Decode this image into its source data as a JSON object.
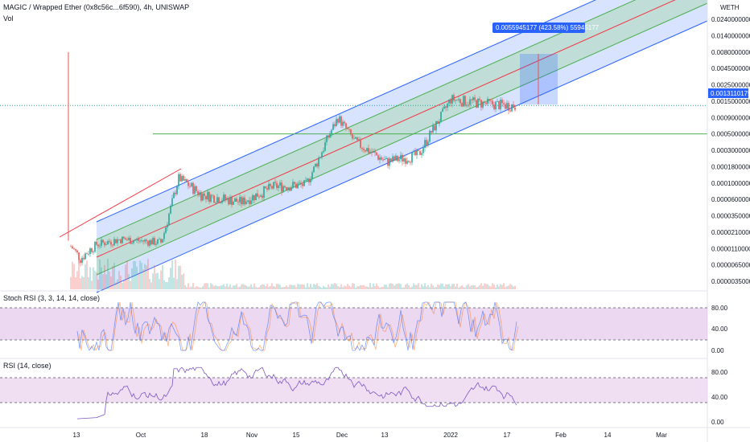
{
  "header": {
    "title": "MAGIC / Wrapped Ether (0x8c56c...6f590), 4h, UNISWAP",
    "vol_label": "Vol"
  },
  "colors": {
    "up": "#26a69a",
    "down": "#ef5350",
    "channel_fill": "#2962ff",
    "channel_line": "#2962ff",
    "inner_fill": "#a5d6a7",
    "median_line": "#f23645",
    "hline": "#4caf50",
    "osc_fill": "#e1bee7",
    "stoch_k": "#2962ff",
    "stoch_d": "#ff6d00",
    "rsi_line": "#7e57c2",
    "measure_fill": "#2962ff",
    "badge": "#2962ff"
  },
  "chart_data": [
    {
      "type": "candlestick",
      "title": "MAGIC / Wrapped Ether (0x8c56c...6f590), 4h, UNISWAP",
      "yscale": "log",
      "currency_label": "WETH",
      "y_ticks": [
        "0.0240000000",
        "0.0140000000",
        "0.0080000000",
        "0.0045000000",
        "0.0025000000",
        "0.0015000000",
        "0.0009000000",
        "0.0005000000",
        "0.0003000000",
        "0.0001800000",
        "0.0001000000",
        "0.0000600000",
        "0.0000350000",
        "0.0000210000",
        "0.0000110000",
        "0.0000065000",
        "0.0000035000"
      ],
      "x_ticks": [
        "13",
        "Oct",
        "18",
        "Nov",
        "15",
        "Dec",
        "13",
        "2022",
        "17",
        "Feb",
        "14",
        "Mar"
      ],
      "last_price": "0.0013110179",
      "measure_label": "0.0055945177 (423.58%) 55945177",
      "horizontal_line": 0.0005,
      "series_description": "Price rises from about 0.0000080 in mid-September to about 0.0013 in mid-January inside an ascending regression channel"
    },
    {
      "type": "line",
      "title": "Stoch RSI (3, 3, 14, 14, close)",
      "y_ticks": [
        "80.00",
        "40.00",
        "0.00"
      ],
      "bands": [
        20,
        80
      ]
    },
    {
      "type": "line",
      "title": "RSI (14, close)",
      "y_ticks": [
        "80.00",
        "40.00",
        "0.00"
      ],
      "bands": [
        30,
        70
      ]
    }
  ]
}
